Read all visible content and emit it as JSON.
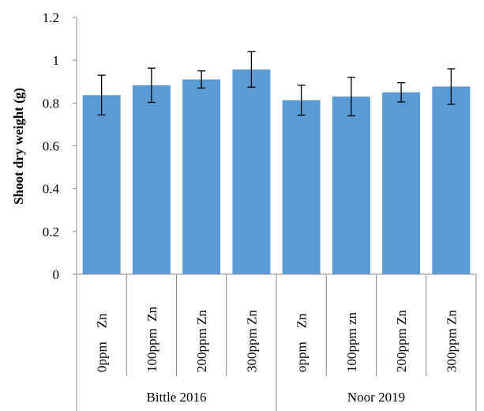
{
  "chart_data": {
    "type": "bar",
    "title": "",
    "xlabel": "",
    "ylabel": "Shoot dry weight (g)",
    "ylim": [
      0,
      1.2
    ],
    "yticks": [
      "0",
      "0.2",
      "0.4",
      "0.6",
      "0.8",
      "1",
      "1.2"
    ],
    "categories": [
      "0ppm    Zn",
      "100ppm  Zn",
      "200ppm Zn",
      "300ppm Zn",
      "oppm    Zn",
      "100ppm zn",
      "200ppm Zn",
      "300ppm Zn"
    ],
    "groups": [
      {
        "label": "Bittle 2016",
        "count": 4
      },
      {
        "label": "Noor 2019",
        "count": 4
      }
    ],
    "values": [
      0.837,
      0.883,
      0.91,
      0.957,
      0.813,
      0.83,
      0.85,
      0.877
    ],
    "errors": [
      0.093,
      0.08,
      0.04,
      0.083,
      0.07,
      0.09,
      0.045,
      0.083
    ],
    "bar_color": "#5b9bd5",
    "grid": false,
    "legend": "none"
  }
}
